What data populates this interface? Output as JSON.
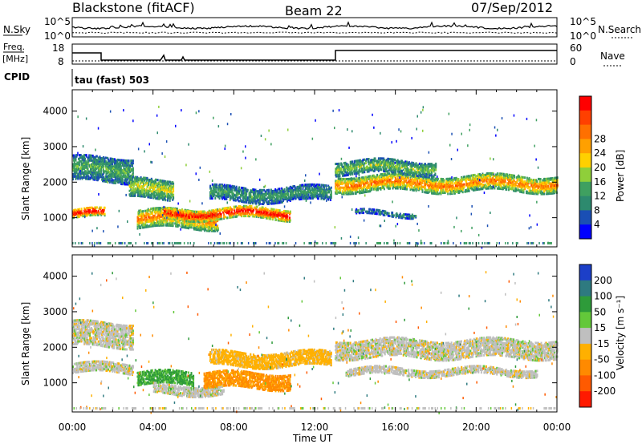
{
  "header": {
    "station": "Blackstone (fitACF)",
    "beam": "Beam 22",
    "date": "07/Sep/2012"
  },
  "left_labels": {
    "nsky": "N.Sky",
    "freq_top": "Freq.",
    "freq_unit": "[MHz]",
    "cpid": "CPID"
  },
  "right_labels": {
    "nsearch": "N.Search",
    "nave": "Nave"
  },
  "cpid_text": "tau (fast) 503",
  "scale_labels": {
    "noise_top": "10^5",
    "noise_bottom": "10^0",
    "noise_right_top": "10^5",
    "noise_right_bottom": "10^0",
    "freq_left_top": "18",
    "freq_left_bottom": "8",
    "nave_right_top": "60",
    "nave_right_bottom": "0"
  },
  "colors": {
    "power": [
      "#0000ff",
      "#1a4fb4",
      "#2d8a6e",
      "#3fa060",
      "#8fcf3a",
      "#ffd000",
      "#ffa000",
      "#ff7000",
      "#ff4000",
      "#ff0000"
    ],
    "velocity": [
      "#1c3fc8",
      "#2e7a80",
      "#2e9b3a",
      "#63c83a",
      "#bfbfbf",
      "#ffb000",
      "#ff8a00",
      "#ff5a00",
      "#ff1a00"
    ]
  },
  "chart_data": [
    {
      "type": "heatmap",
      "name": "power",
      "xlabel": "",
      "ylabel": "Slant Range [km]",
      "x_ticks": [
        "00:00",
        "04:00",
        "08:00",
        "12:00",
        "16:00",
        "20:00",
        "00:00"
      ],
      "y_ticks": [
        "1000",
        "2000",
        "3000",
        "4000"
      ],
      "xlim": [
        0,
        24
      ],
      "ylim": [
        180,
        4600
      ],
      "colorbar": {
        "label": "Power [dB]",
        "ticks": [
          "4",
          "8",
          "12",
          "16",
          "20",
          "24",
          "28"
        ],
        "range": [
          0,
          30
        ]
      },
      "echo_bands": [
        {
          "t0": 0.0,
          "t1": 1.6,
          "r_center": 1150,
          "r_half": 120,
          "value": 28
        },
        {
          "t0": 0.0,
          "t1": 3.0,
          "r_center": 2400,
          "r_half": 350,
          "value": 10
        },
        {
          "t0": 3.2,
          "t1": 7.2,
          "r_center": 1000,
          "r_half": 260,
          "value": 20
        },
        {
          "t0": 4.5,
          "t1": 10.8,
          "r_center": 1150,
          "r_half": 150,
          "value": 27
        },
        {
          "t0": 2.8,
          "t1": 5.0,
          "r_center": 1850,
          "r_half": 280,
          "value": 14
        },
        {
          "t0": 6.8,
          "t1": 12.8,
          "r_center": 1700,
          "r_half": 200,
          "value": 9
        },
        {
          "t0": 13.0,
          "t1": 24.0,
          "r_center": 2000,
          "r_half": 220,
          "value": 20
        },
        {
          "t0": 13.0,
          "t1": 18.0,
          "r_center": 2450,
          "r_half": 180,
          "value": 12
        },
        {
          "t0": 14.0,
          "t1": 17.0,
          "r_center": 1150,
          "r_half": 60,
          "value": 8
        }
      ]
    },
    {
      "type": "heatmap",
      "name": "velocity",
      "xlabel": "Time UT",
      "ylabel": "Slant Range [km]",
      "x_ticks": [
        "00:00",
        "04:00",
        "08:00",
        "12:00",
        "16:00",
        "20:00",
        "00:00"
      ],
      "y_ticks": [
        "1000",
        "2000",
        "3000",
        "4000"
      ],
      "xlim": [
        0,
        24
      ],
      "ylim": [
        180,
        4600
      ],
      "colorbar": {
        "label": "Velocity [m s⁻¹]",
        "ticks": [
          "200",
          "100",
          "50",
          "15",
          "-15",
          "-50",
          "-100",
          "-200"
        ],
        "range": [
          -250,
          250
        ]
      },
      "echo_bands": [
        {
          "t0": 0.0,
          "t1": 3.0,
          "r_center": 1450,
          "r_half": 140,
          "value": 0
        },
        {
          "t0": 0.0,
          "t1": 3.0,
          "r_center": 2400,
          "r_half": 350,
          "value": 0
        },
        {
          "t0": 3.2,
          "t1": 6.0,
          "r_center": 1150,
          "r_half": 180,
          "value": 60
        },
        {
          "t0": 4.0,
          "t1": 7.5,
          "r_center": 850,
          "r_half": 140,
          "value": 0
        },
        {
          "t0": 6.5,
          "t1": 10.8,
          "r_center": 1100,
          "r_half": 220,
          "value": -60
        },
        {
          "t0": 6.8,
          "t1": 12.8,
          "r_center": 1700,
          "r_half": 200,
          "value": -30
        },
        {
          "t0": 13.0,
          "t1": 24.0,
          "r_center": 2000,
          "r_half": 260,
          "value": 0
        },
        {
          "t0": 13.5,
          "t1": 23.0,
          "r_center": 1350,
          "r_half": 100,
          "value": 0
        }
      ]
    }
  ]
}
